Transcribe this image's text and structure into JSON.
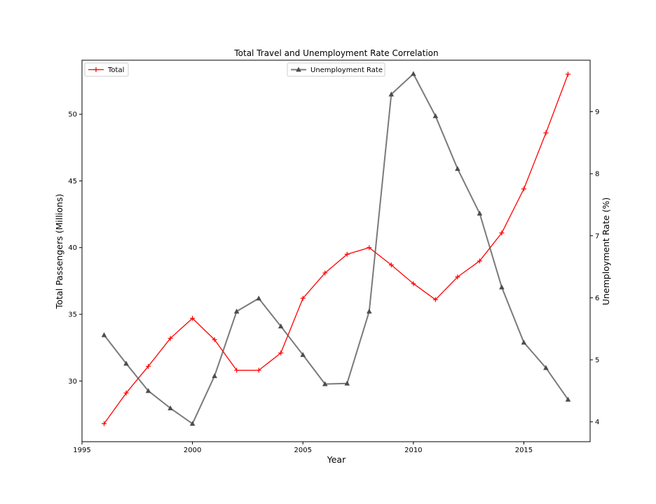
{
  "chart_data": {
    "type": "line",
    "title": "Total Travel and Unemployment Rate Correlation",
    "xlabel": "Year",
    "ylabel_left": "Total Passengers (Millions)",
    "ylabel_right": "Unemployment Rate (%)",
    "x": [
      1996,
      1997,
      1998,
      1999,
      2000,
      2001,
      2002,
      2003,
      2004,
      2005,
      2006,
      2007,
      2008,
      2009,
      2010,
      2011,
      2012,
      2013,
      2014,
      2015,
      2016,
      2017
    ],
    "xlim": [
      1995,
      2018
    ],
    "ylim_left": [
      25.45,
      54.05
    ],
    "ylim_right": [
      3.68,
      9.83
    ],
    "x_ticks": [
      1995,
      2000,
      2005,
      2010,
      2015
    ],
    "y_ticks_left": [
      30,
      35,
      40,
      45,
      50
    ],
    "y_ticks_right": [
      4,
      5,
      6,
      7,
      8,
      9
    ],
    "grid": false,
    "series": [
      {
        "name": "Total",
        "axis": "left",
        "color": "#ff0000",
        "marker": "plus",
        "legend_position": "upper-left",
        "values": [
          26.8,
          29.1,
          31.1,
          33.2,
          34.7,
          33.1,
          30.8,
          30.8,
          32.1,
          36.2,
          38.1,
          39.5,
          40.0,
          38.7,
          37.3,
          36.1,
          37.8,
          39.0,
          41.1,
          44.4,
          48.6,
          53.0
        ]
      },
      {
        "name": "Unemployment Rate",
        "axis": "right",
        "color": "#4d4d4d",
        "marker": "triangle",
        "legend_position": "upper-center",
        "values": [
          5.4,
          4.94,
          4.5,
          4.22,
          3.97,
          4.74,
          5.78,
          5.99,
          5.54,
          5.08,
          4.61,
          4.62,
          5.78,
          9.28,
          9.61,
          8.93,
          8.08,
          7.36,
          6.17,
          5.28,
          4.87,
          4.36
        ]
      }
    ]
  }
}
